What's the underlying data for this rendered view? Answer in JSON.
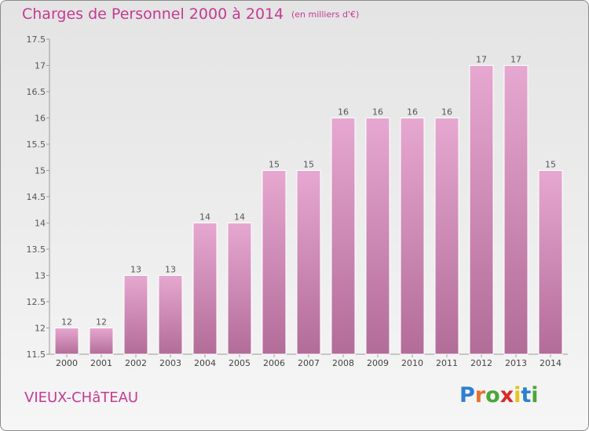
{
  "title": "Charges de Personnel 2000 à 2014",
  "subtitle": "(en milliers d'€)",
  "town": "VIEUX-CHâTEAU",
  "logo": {
    "letters": [
      "P",
      "r",
      "o",
      "x",
      "i",
      "t",
      "i"
    ]
  },
  "colors": {
    "title": "#c43a92",
    "bar_top": "#e6a8d0",
    "bar_bottom": "#b26c98",
    "axis": "#9a9a9a"
  },
  "chart_data": {
    "type": "bar",
    "categories": [
      "2000",
      "2001",
      "2002",
      "2003",
      "2004",
      "2005",
      "2006",
      "2007",
      "2008",
      "2009",
      "2010",
      "2011",
      "2012",
      "2013",
      "2014"
    ],
    "values": [
      12,
      12,
      13,
      13,
      14,
      14,
      15,
      15,
      16,
      16,
      16,
      16,
      17,
      17,
      15
    ],
    "data_labels": [
      "12",
      "12",
      "13",
      "13",
      "14",
      "14",
      "15",
      "15",
      "16",
      "16",
      "16",
      "16",
      "17",
      "17",
      "15"
    ],
    "yticks": [
      11.5,
      12,
      12.5,
      13,
      13.5,
      14,
      14.5,
      15,
      15.5,
      16,
      16.5,
      17,
      17.5
    ],
    "ytick_labels": [
      "11.5",
      "12",
      "12.5",
      "13",
      "13.5",
      "14",
      "14.5",
      "15",
      "15.5",
      "16",
      "16.5",
      "17",
      "17.5"
    ],
    "ylim": [
      11.5,
      17.5
    ],
    "grid": false,
    "legend": "none"
  }
}
